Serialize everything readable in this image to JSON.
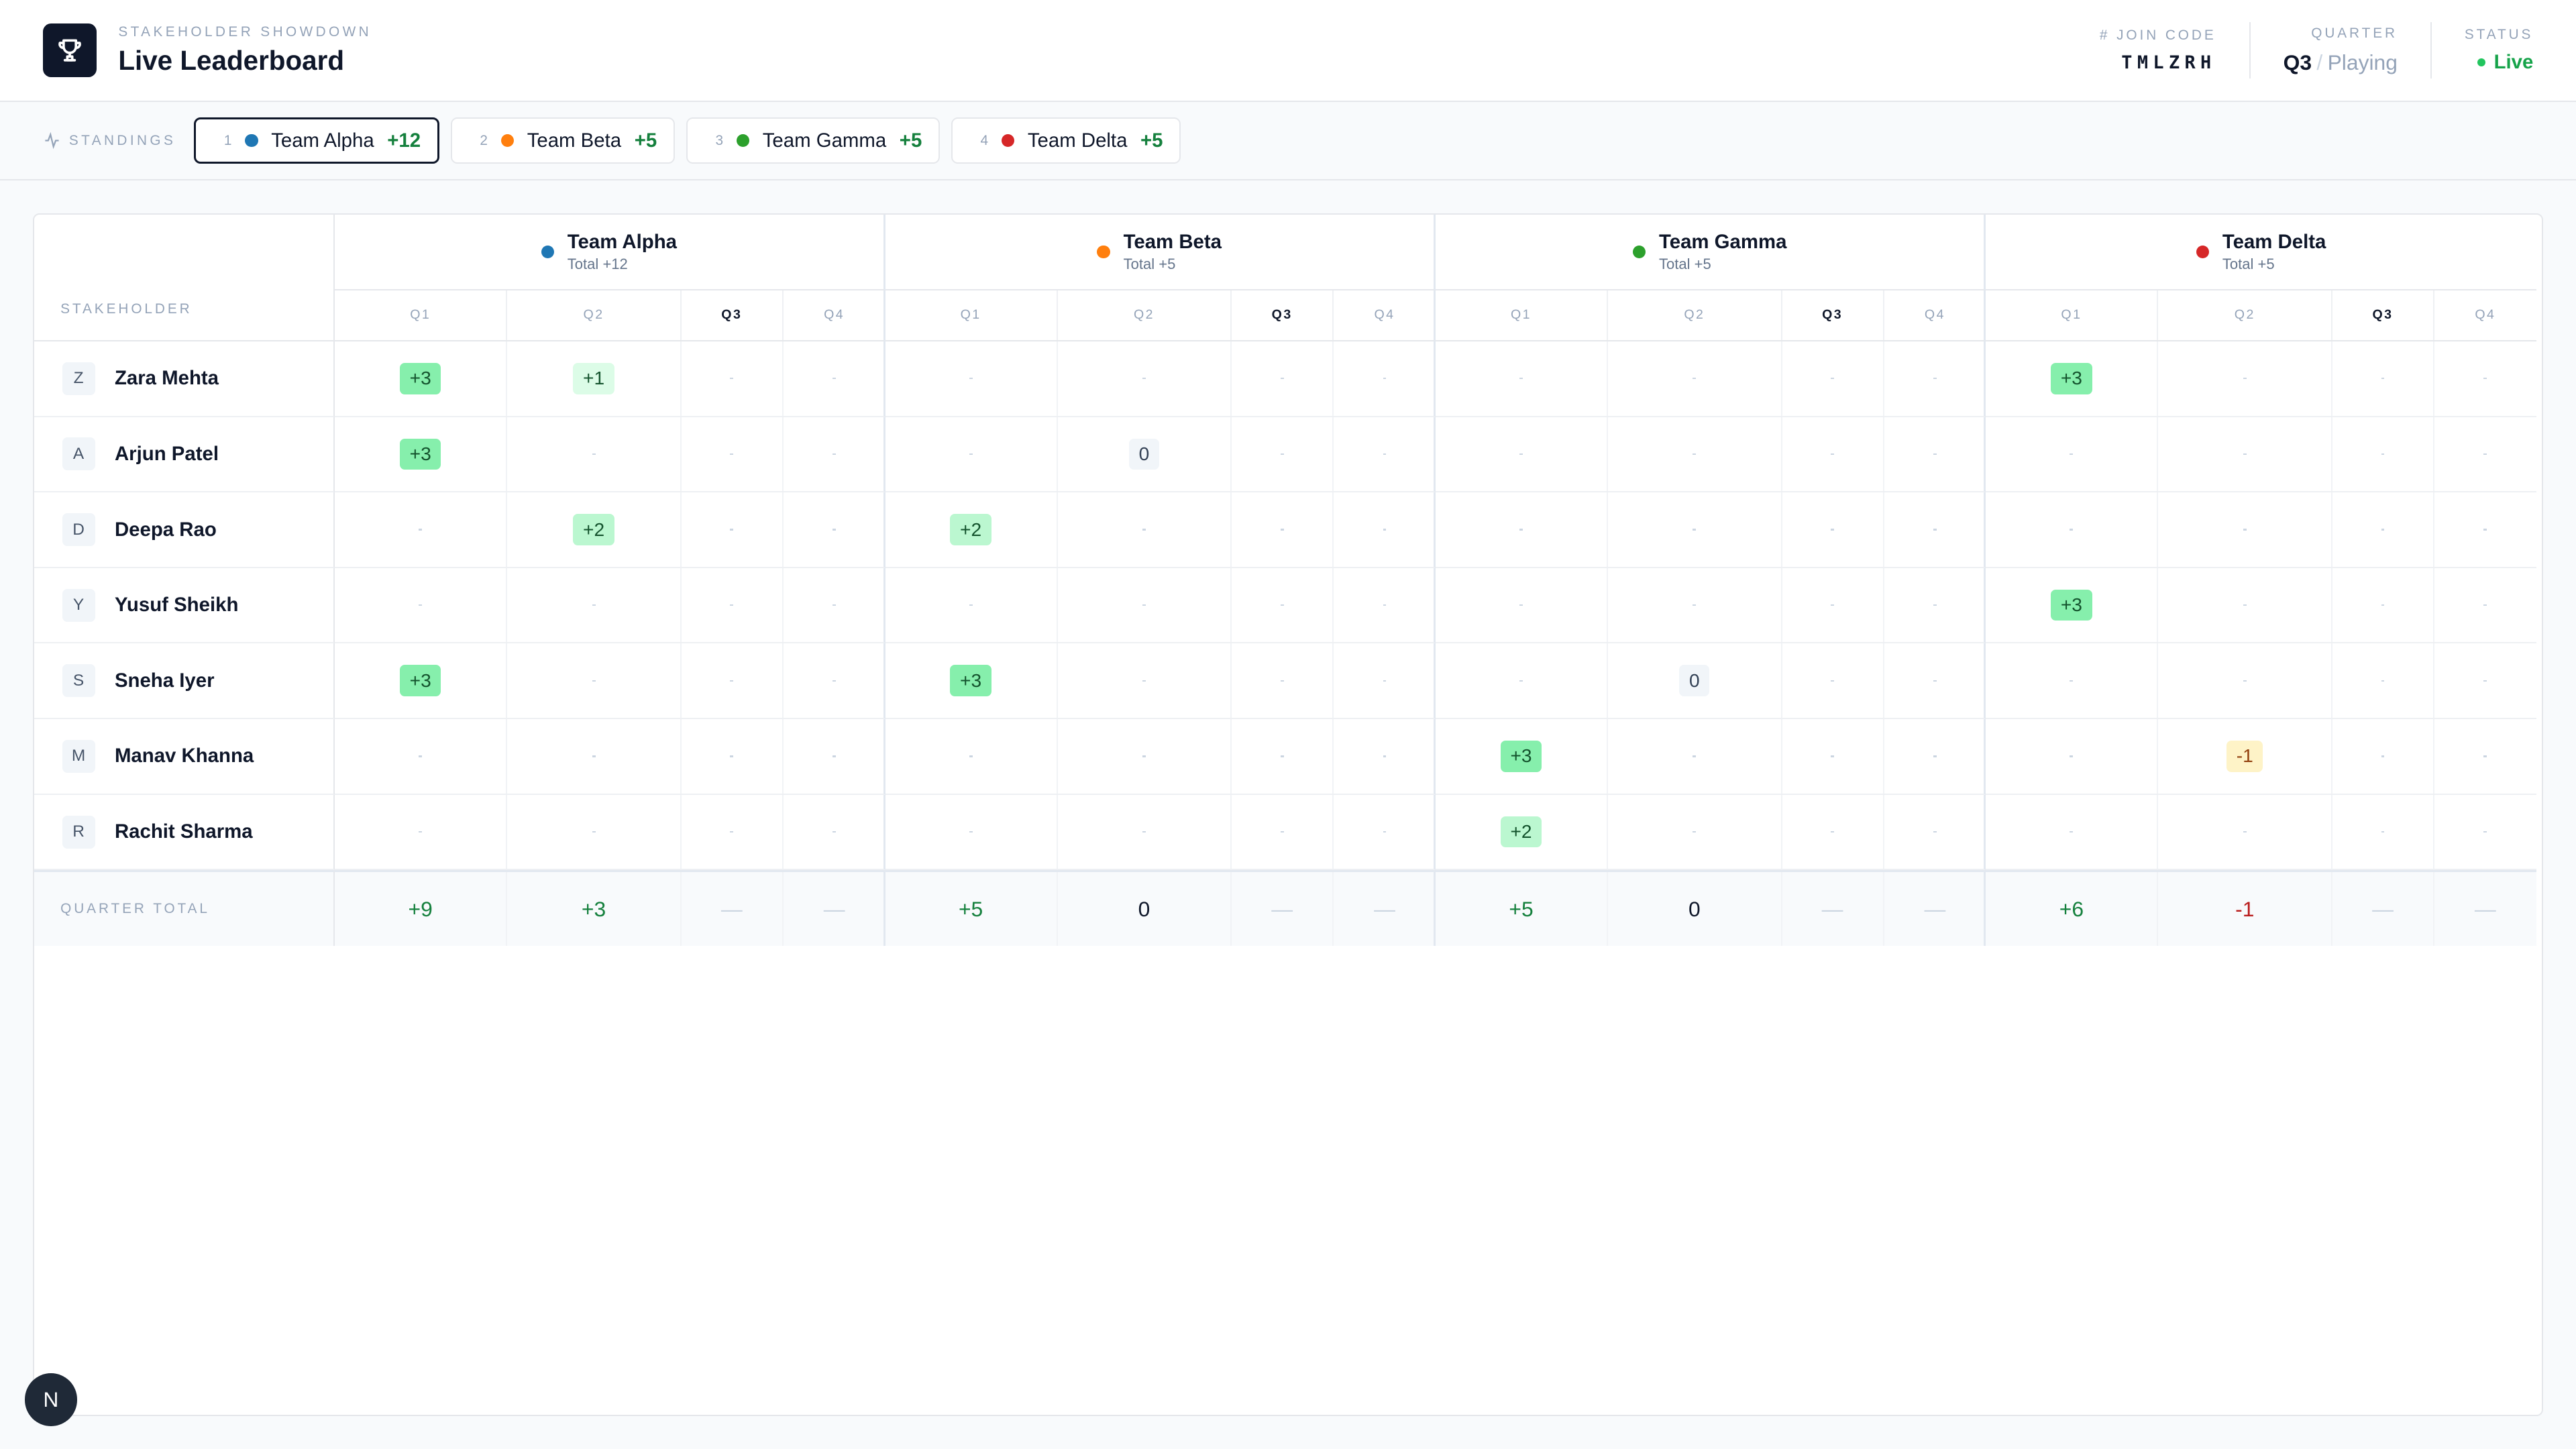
{
  "header": {
    "eyebrow": "STAKEHOLDER SHOWDOWN",
    "title": "Live Leaderboard",
    "join_code_label": "JOIN CODE",
    "join_code": "TMLZRH",
    "quarter_label": "QUARTER",
    "quarter_value": "Q3",
    "quarter_sep": "/",
    "quarter_state": "Playing",
    "status_label": "STATUS",
    "status_value": "Live"
  },
  "standings": {
    "label": "STANDINGS",
    "items": [
      {
        "rank": "1",
        "name": "Team Alpha",
        "score": "+12",
        "color": "#1f77b4"
      },
      {
        "rank": "2",
        "name": "Team Beta",
        "score": "+5",
        "color": "#ff7f0e"
      },
      {
        "rank": "3",
        "name": "Team Gamma",
        "score": "+5",
        "color": "#2ca02c"
      },
      {
        "rank": "4",
        "name": "Team Delta",
        "score": "+5",
        "color": "#d62728"
      }
    ]
  },
  "table": {
    "stakeholder_header": "STAKEHOLDER",
    "quarters": [
      "Q1",
      "Q2",
      "Q3",
      "Q4"
    ],
    "current_quarter": "Q3",
    "teams": [
      {
        "name": "Team Alpha",
        "total": "Total +12",
        "color": "#1f77b4"
      },
      {
        "name": "Team Beta",
        "total": "Total +5",
        "color": "#ff7f0e"
      },
      {
        "name": "Team Gamma",
        "total": "Total +5",
        "color": "#2ca02c"
      },
      {
        "name": "Team Delta",
        "total": "Total +5",
        "color": "#d62728"
      }
    ],
    "rows": [
      {
        "initial": "Z",
        "name": "Zara Mehta",
        "scores": [
          [
            "+3",
            "+1",
            "",
            ""
          ],
          [
            "",
            "",
            "",
            ""
          ],
          [
            "",
            "",
            "",
            ""
          ],
          [
            "+3",
            "",
            "",
            ""
          ]
        ]
      },
      {
        "initial": "A",
        "name": "Arjun Patel",
        "scores": [
          [
            "+3",
            "",
            "",
            ""
          ],
          [
            "",
            "0",
            "",
            ""
          ],
          [
            "",
            "",
            "",
            ""
          ],
          [
            "",
            "",
            "",
            ""
          ]
        ]
      },
      {
        "initial": "D",
        "name": "Deepa Rao",
        "scores": [
          [
            "",
            "+2",
            "",
            ""
          ],
          [
            "+2",
            "",
            "",
            ""
          ],
          [
            "",
            "",
            "",
            ""
          ],
          [
            "",
            "",
            "",
            ""
          ]
        ]
      },
      {
        "initial": "Y",
        "name": "Yusuf Sheikh",
        "scores": [
          [
            "",
            "",
            "",
            ""
          ],
          [
            "",
            "",
            "",
            ""
          ],
          [
            "",
            "",
            "",
            ""
          ],
          [
            "+3",
            "",
            "",
            ""
          ]
        ]
      },
      {
        "initial": "S",
        "name": "Sneha Iyer",
        "scores": [
          [
            "+3",
            "",
            "",
            ""
          ],
          [
            "+3",
            "",
            "",
            ""
          ],
          [
            "",
            "0",
            "",
            ""
          ],
          [
            "",
            "",
            "",
            ""
          ]
        ]
      },
      {
        "initial": "M",
        "name": "Manav Khanna",
        "scores": [
          [
            "",
            "",
            "",
            ""
          ],
          [
            "",
            "",
            "",
            ""
          ],
          [
            "+3",
            "",
            "",
            ""
          ],
          [
            "",
            "-1",
            "",
            ""
          ]
        ]
      },
      {
        "initial": "R",
        "name": "Rachit Sharma",
        "scores": [
          [
            "",
            "",
            "",
            ""
          ],
          [
            "",
            "",
            "",
            ""
          ],
          [
            "+2",
            "",
            "",
            ""
          ],
          [
            "",
            "",
            "",
            ""
          ]
        ]
      }
    ],
    "totals_label": "QUARTER TOTAL",
    "totals": [
      [
        "+9",
        "+3",
        "—",
        "—"
      ],
      [
        "+5",
        "0",
        "—",
        "—"
      ],
      [
        "+5",
        "0",
        "—",
        "—"
      ],
      [
        "+6",
        "-1",
        "—",
        "—"
      ]
    ]
  },
  "fab": {
    "label": "N"
  }
}
